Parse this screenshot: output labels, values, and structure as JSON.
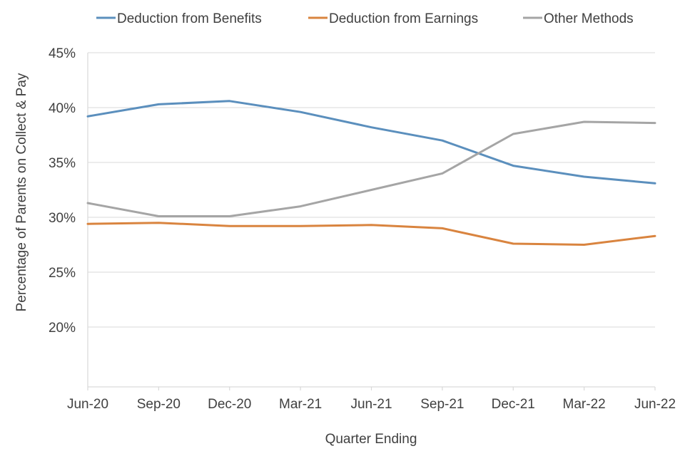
{
  "chart_data": {
    "type": "line",
    "title": "",
    "xlabel": "Quarter Ending",
    "ylabel": "Percentage of Parents on Collect & Pay",
    "ylim": [
      15,
      45
    ],
    "yticks": [
      20,
      25,
      30,
      35,
      40,
      45
    ],
    "ytick_labels": [
      "20%",
      "25%",
      "30%",
      "35%",
      "40%",
      "45%"
    ],
    "grid": true,
    "legend_position": "top",
    "categories": [
      "Jun-20",
      "Sep-20",
      "Dec-20",
      "Mar-21",
      "Jun-21",
      "Sep-21",
      "Dec-21",
      "Mar-22",
      "Jun-22"
    ],
    "series": [
      {
        "name": "Deduction from Benefits",
        "color": "#5b8fbd",
        "values": [
          39.2,
          40.3,
          40.6,
          39.6,
          38.2,
          37.0,
          34.7,
          33.7,
          33.1
        ]
      },
      {
        "name": "Deduction from Earnings",
        "color": "#d9843f",
        "values": [
          29.4,
          29.5,
          29.2,
          29.2,
          29.3,
          29.0,
          27.6,
          27.5,
          28.3
        ]
      },
      {
        "name": "Other Methods",
        "color": "#a5a5a5",
        "values": [
          31.3,
          30.1,
          30.1,
          31.0,
          32.5,
          34.0,
          37.6,
          38.7,
          38.6
        ]
      }
    ]
  }
}
